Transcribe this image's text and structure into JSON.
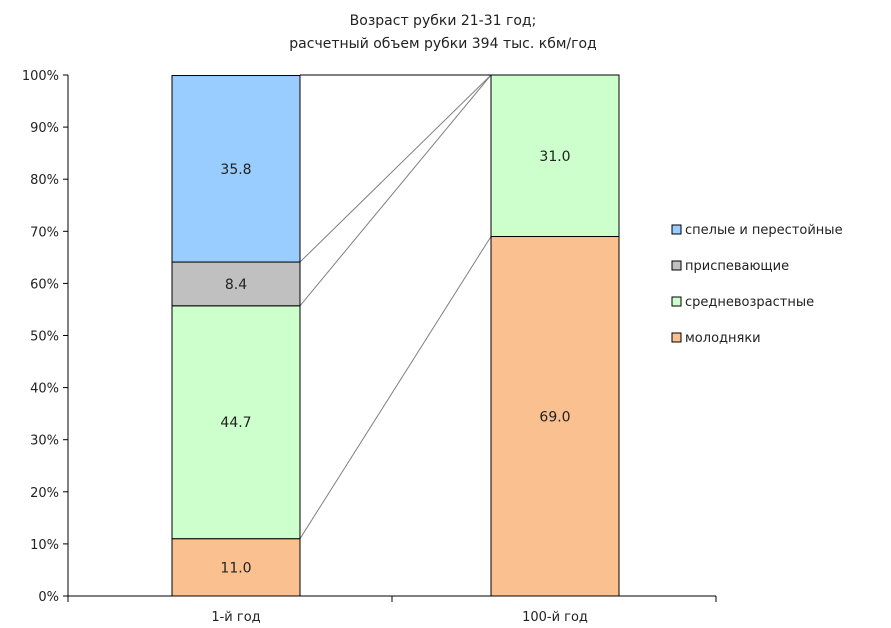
{
  "chart_data": {
    "type": "bar",
    "stacked": true,
    "percent_stacked": true,
    "title_lines": [
      "Возраст рубки 21-31 год;",
      "расчетный объем рубки 394 тыс. кбм/год"
    ],
    "categories": [
      "1-й год",
      "100-й год"
    ],
    "ylim": [
      0,
      100
    ],
    "y_ticks": [
      "0%",
      "10%",
      "20%",
      "30%",
      "40%",
      "50%",
      "60%",
      "70%",
      "80%",
      "90%",
      "100%"
    ],
    "series": [
      {
        "name": "молодняки",
        "values": [
          11.0,
          69.0
        ],
        "labels": [
          "11.0",
          "69.0"
        ],
        "color": "#fac090"
      },
      {
        "name": "средневозрастные",
        "values": [
          44.7,
          31.0
        ],
        "labels": [
          "44.7",
          "31.0"
        ],
        "color": "#ccffcc"
      },
      {
        "name": "приспевающие",
        "values": [
          8.4,
          0
        ],
        "labels": [
          "8.4",
          ""
        ],
        "color": "#c0c0c0"
      },
      {
        "name": "спелые и перестойные",
        "values": [
          35.8,
          0
        ],
        "labels": [
          "35.8",
          ""
        ],
        "color": "#99ccff"
      }
    ],
    "legend_order": [
      "спелые и перестойные",
      "приспевающие",
      "средневозрастные",
      "молодняки"
    ],
    "legend_position": "right",
    "series_lines": true,
    "grid": false
  }
}
